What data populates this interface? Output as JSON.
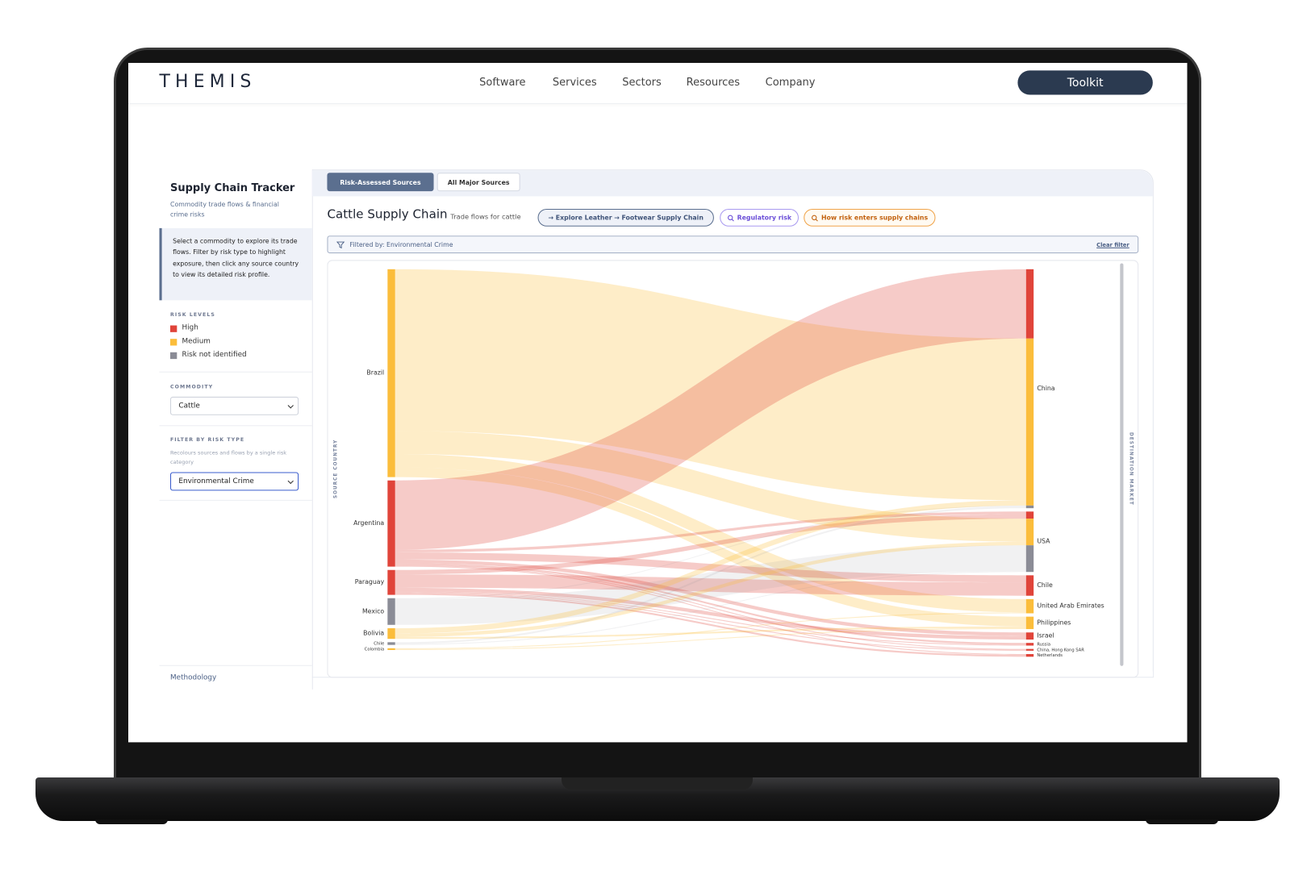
{
  "nav": {
    "logo": "THEMIS",
    "links": [
      "Software",
      "Services",
      "Sectors",
      "Resources",
      "Company"
    ],
    "button": "Toolkit"
  },
  "sidebar": {
    "title": "Supply Chain Tracker",
    "subtitle": "Commodity trade flows & financial crime risks",
    "intro": "Select a commodity to explore its trade flows. Filter by risk type to highlight exposure, then click any source country to view its detailed risk profile.",
    "risk_levels": {
      "heading": "RISK LEVELS",
      "items": [
        {
          "label": "High",
          "color": "#e0443a"
        },
        {
          "label": "Medium",
          "color": "#fbbd3b"
        },
        {
          "label": "Risk not identified",
          "color": "#8b8c96"
        }
      ]
    },
    "commodity": {
      "heading": "COMMODITY",
      "value": "Cattle"
    },
    "filter": {
      "heading": "FILTER BY RISK TYPE",
      "description": "Recolours sources and flows by a single risk category",
      "value": "Environmental Crime"
    },
    "methodology": "Methodology"
  },
  "tabs": [
    "Risk-Assessed Sources",
    "All Major Sources"
  ],
  "header": {
    "title": "Cattle Supply Chain",
    "subtitle": "Trade flows for cattle",
    "pills": [
      "→ Explore Leather → Footwear Supply Chain",
      "Regulatory risk",
      "How risk enters supply chains"
    ]
  },
  "filter_bar": {
    "text": "Filtered by: Environmental Crime",
    "clear": "Clear filter"
  },
  "chart_data": {
    "type": "sankey",
    "left_axis_label": "SOURCE COUNTRY",
    "right_axis_label": "DESTINATION MARKET",
    "sources": [
      {
        "name": "Brazil",
        "color": "#fbbd3b"
      },
      {
        "name": "Argentina",
        "color": "#e0443a"
      },
      {
        "name": "Paraguay",
        "color": "#e0443a"
      },
      {
        "name": "Mexico",
        "color": "#8b8c96"
      },
      {
        "name": "Bolivia",
        "color": "#fbbd3b"
      },
      {
        "name": "Chile",
        "color": "#8b8c96"
      },
      {
        "name": "Colombia",
        "color": "#fbbd3b"
      }
    ],
    "targets": [
      {
        "name": "China"
      },
      {
        "name": "USA"
      },
      {
        "name": "Chile"
      },
      {
        "name": "United Arab Emirates"
      },
      {
        "name": "Philippines"
      },
      {
        "name": "Israel"
      },
      {
        "name": "Russia"
      },
      {
        "name": "China, Hong Kong SAR"
      },
      {
        "name": "Netherlands"
      }
    ],
    "links": [
      {
        "source": 0,
        "target": 0,
        "value": 182
      },
      {
        "source": 0,
        "target": 1,
        "value": 26
      },
      {
        "source": 0,
        "target": 3,
        "value": 15
      },
      {
        "source": 0,
        "target": 4,
        "value": 11
      },
      {
        "source": 1,
        "target": 0,
        "value": 78
      },
      {
        "source": 1,
        "target": 1,
        "value": 3
      },
      {
        "source": 1,
        "target": 2,
        "value": 8
      },
      {
        "source": 1,
        "target": 5,
        "value": 4
      },
      {
        "source": 1,
        "target": 6,
        "value": 2
      },
      {
        "source": 1,
        "target": 7,
        "value": 1
      },
      {
        "source": 1,
        "target": 8,
        "value": 1
      },
      {
        "source": 2,
        "target": 1,
        "value": 5
      },
      {
        "source": 2,
        "target": 2,
        "value": 15
      },
      {
        "source": 2,
        "target": 5,
        "value": 4
      },
      {
        "source": 2,
        "target": 6,
        "value": 1
      },
      {
        "source": 2,
        "target": 7,
        "value": 1
      },
      {
        "source": 2,
        "target": 8,
        "value": 2
      },
      {
        "source": 3,
        "target": 0,
        "value": 1
      },
      {
        "source": 3,
        "target": 1,
        "value": 29
      },
      {
        "source": 4,
        "target": 0,
        "value": 6
      },
      {
        "source": 4,
        "target": 1,
        "value": 4
      },
      {
        "source": 4,
        "target": 4,
        "value": 2
      },
      {
        "source": 5,
        "target": 0,
        "value": 2
      },
      {
        "source": 5,
        "target": 1,
        "value": 1
      },
      {
        "source": 6,
        "target": 3,
        "value": 1
      },
      {
        "source": 6,
        "target": 4,
        "value": 1
      }
    ]
  }
}
